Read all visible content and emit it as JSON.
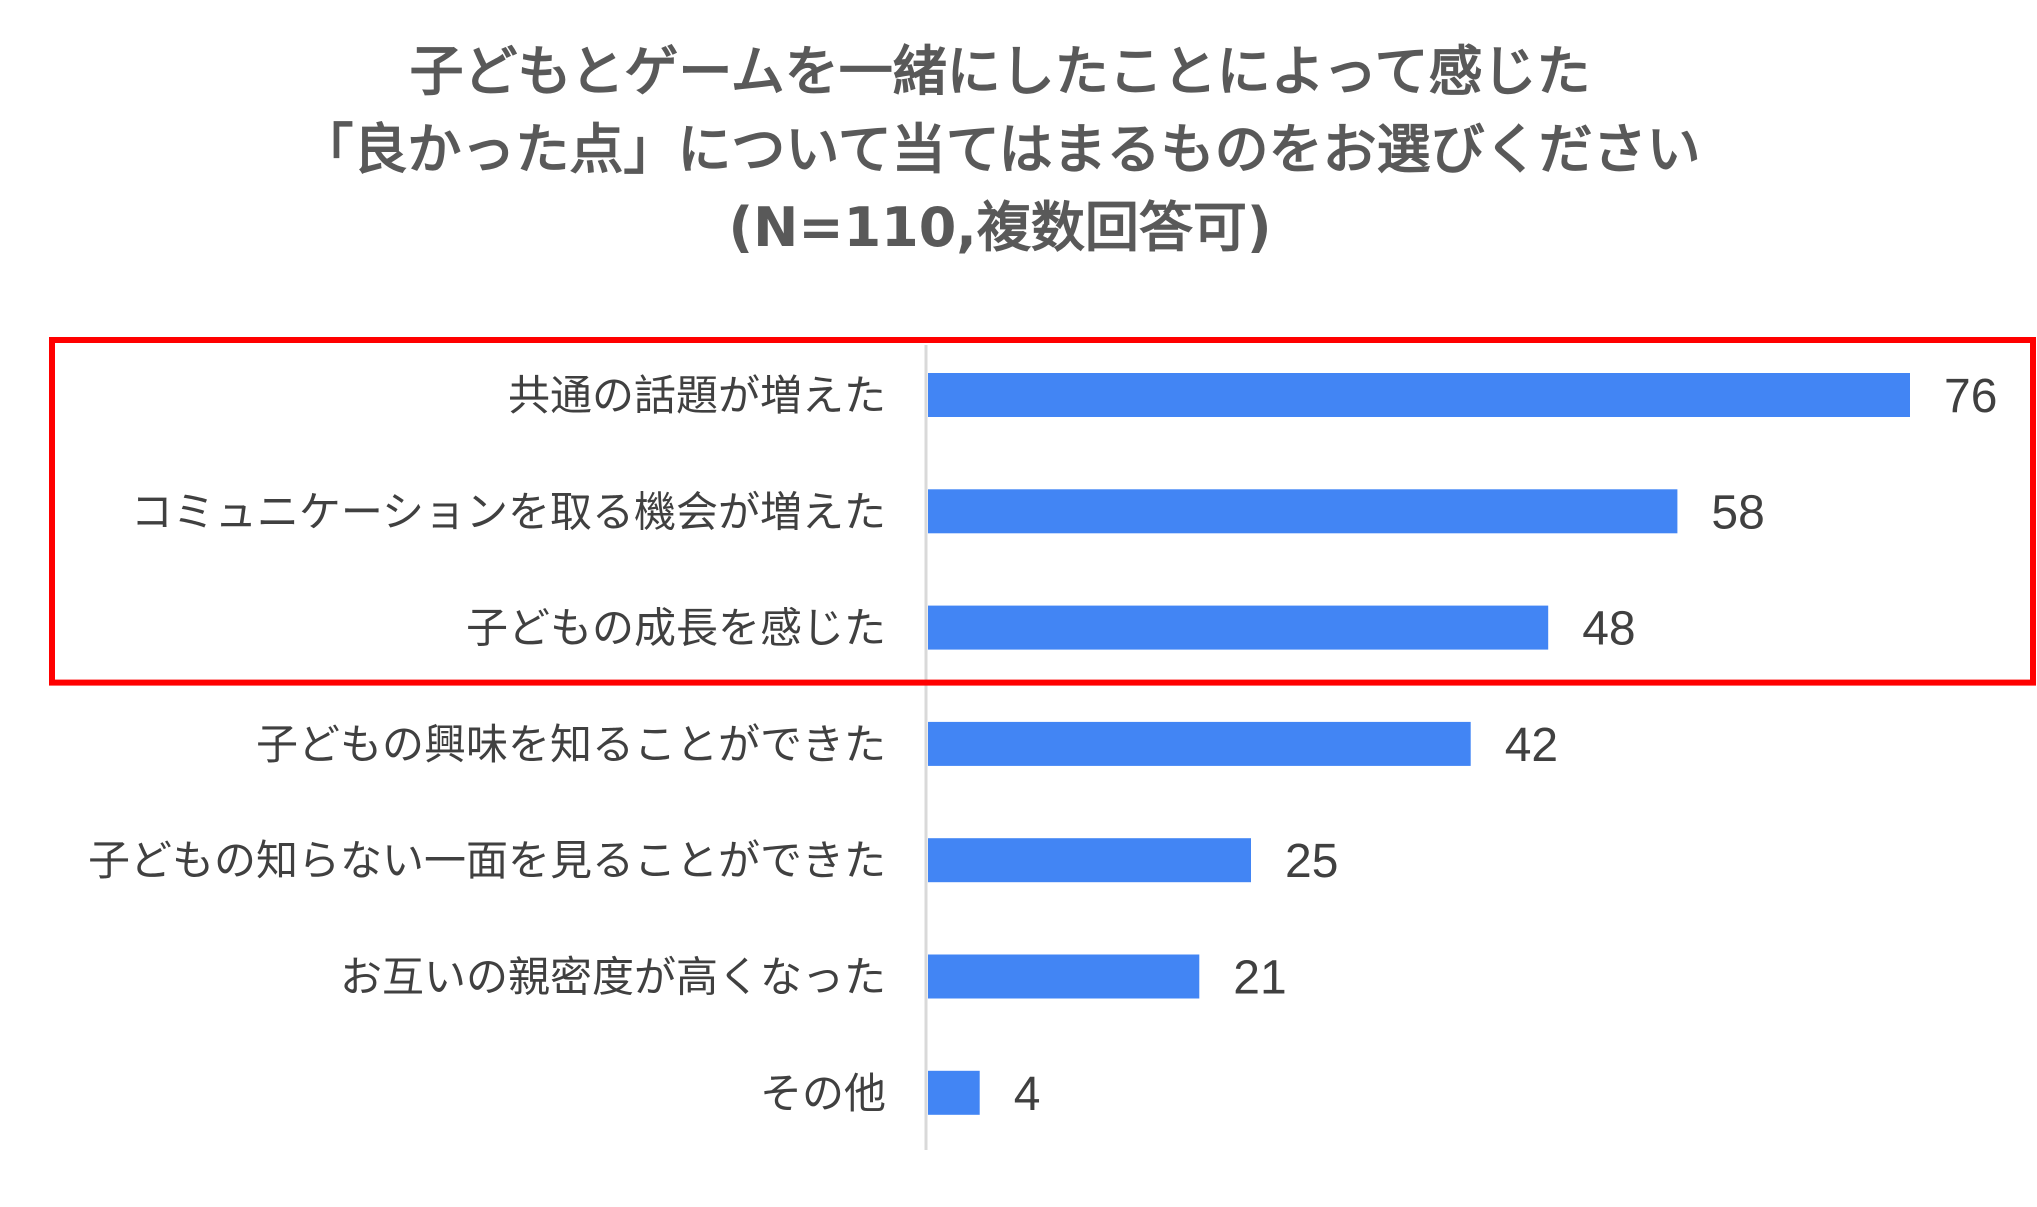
{
  "chart_data": {
    "type": "bar",
    "orientation": "horizontal",
    "title_lines": [
      "子どもとゲームを一緒にしたことによって感じた",
      "「良かった点」について当てはまるものをお選びください",
      "(N=110,複数回答可)"
    ],
    "categories": [
      "共通の話題が増えた",
      "コミュニケーションを取る機会が増えた",
      "子どもの成長を感じた",
      "子どもの興味を知ることができた",
      "子どもの知らない一面を見ることができた",
      "お互いの親密度が高くなった",
      "その他"
    ],
    "values": [
      76,
      58,
      48,
      42,
      25,
      21,
      4
    ],
    "xlim": [
      0,
      80
    ],
    "grid": false,
    "legend": "none",
    "highlight": {
      "from_index": 0,
      "to_index": 2,
      "color": "#ff0000"
    },
    "colors": {
      "bar": "#4285f4",
      "axis": "#d9d9d9",
      "text": "#404040",
      "title": "#595959"
    }
  }
}
